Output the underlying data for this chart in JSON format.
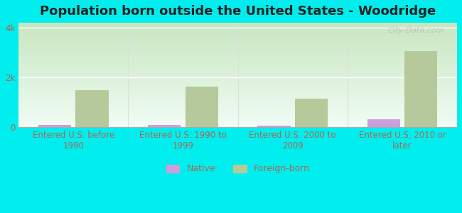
{
  "title": "Population born outside the United States - Woodridge",
  "categories": [
    "Entered U.S. before\n1990",
    "Entered U.S. 1990 to\n1999",
    "Entered U.S. 2000 to\n2009",
    "Entered U.S. 2010 or\nlater"
  ],
  "native_values": [
    100,
    90,
    55,
    320
  ],
  "foreign_born_values": [
    1500,
    1620,
    1150,
    3050
  ],
  "native_color": "#c9a0dc",
  "foreign_born_color": "#b5c99a",
  "background_outer": "#00eeee",
  "background_bottom": "#c8e6c0",
  "background_top": "#f0faf5",
  "ylim": [
    0,
    4200
  ],
  "yticks": [
    0,
    2000,
    4000
  ],
  "ytick_labels": [
    "0",
    "2k",
    "4k"
  ],
  "bar_width": 0.3,
  "title_fontsize": 13,
  "tick_label_fontsize": 8.5,
  "axis_label_color": "#aa6655",
  "watermark_text": "City-Data.com",
  "separator_color": "#dddddd",
  "grid_color": "#ffffff"
}
